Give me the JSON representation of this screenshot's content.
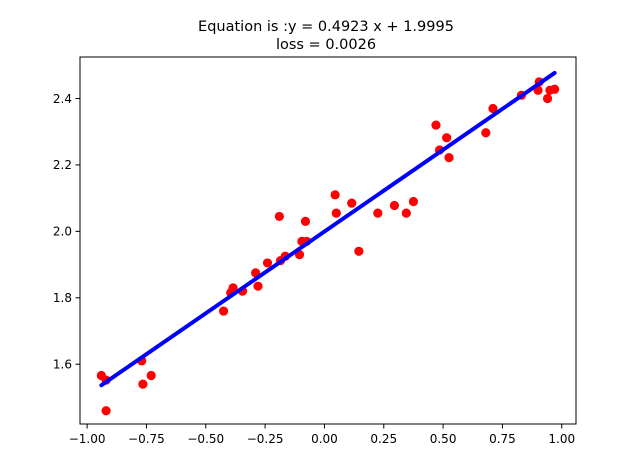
{
  "chart_data": {
    "type": "scatter",
    "title_line1": "Equation is :y = 0.4923 x + 1.9995",
    "title_line2": "loss = 0.0026",
    "xlabel": "",
    "ylabel": "",
    "xlim": [
      -1.03,
      1.06
    ],
    "ylim": [
      1.42,
      2.525
    ],
    "grid": false,
    "x_ticks": [
      {
        "value": -1.0,
        "label": "−1.00"
      },
      {
        "value": -0.75,
        "label": "−0.75"
      },
      {
        "value": -0.5,
        "label": "−0.50"
      },
      {
        "value": -0.25,
        "label": "−0.25"
      },
      {
        "value": 0.0,
        "label": "0.00"
      },
      {
        "value": 0.25,
        "label": "0.25"
      },
      {
        "value": 0.5,
        "label": "0.50"
      },
      {
        "value": 0.75,
        "label": "0.75"
      },
      {
        "value": 1.0,
        "label": "1.00"
      }
    ],
    "y_ticks": [
      {
        "value": 1.6,
        "label": "1.6"
      },
      {
        "value": 1.8,
        "label": "1.8"
      },
      {
        "value": 2.0,
        "label": "2.0"
      },
      {
        "value": 2.2,
        "label": "2.2"
      },
      {
        "value": 2.4,
        "label": "2.4"
      }
    ],
    "scatter": {
      "color": "#ff0000",
      "points": [
        [
          -0.94,
          1.566
        ],
        [
          -0.92,
          1.552
        ],
        [
          -0.92,
          1.46
        ],
        [
          -0.77,
          1.61
        ],
        [
          -0.765,
          1.54
        ],
        [
          -0.73,
          1.566
        ],
        [
          -0.425,
          1.76
        ],
        [
          -0.395,
          1.815
        ],
        [
          -0.385,
          1.83
        ],
        [
          -0.345,
          1.82
        ],
        [
          -0.29,
          1.875
        ],
        [
          -0.28,
          1.835
        ],
        [
          -0.24,
          1.905
        ],
        [
          -0.19,
          2.045
        ],
        [
          -0.185,
          1.912
        ],
        [
          -0.165,
          1.925
        ],
        [
          -0.105,
          1.93
        ],
        [
          -0.095,
          1.97
        ],
        [
          -0.08,
          2.03
        ],
        [
          -0.075,
          1.97
        ],
        [
          0.045,
          2.11
        ],
        [
          0.05,
          2.055
        ],
        [
          0.115,
          2.085
        ],
        [
          0.145,
          1.94
        ],
        [
          0.225,
          2.055
        ],
        [
          0.295,
          2.078
        ],
        [
          0.345,
          2.055
        ],
        [
          0.375,
          2.09
        ],
        [
          0.47,
          2.32
        ],
        [
          0.485,
          2.245
        ],
        [
          0.515,
          2.282
        ],
        [
          0.525,
          2.222
        ],
        [
          0.68,
          2.297
        ],
        [
          0.71,
          2.37
        ],
        [
          0.83,
          2.41
        ],
        [
          0.9,
          2.425
        ],
        [
          0.905,
          2.45
        ],
        [
          0.94,
          2.4
        ],
        [
          0.95,
          2.425
        ],
        [
          0.97,
          2.428
        ]
      ]
    },
    "fit_line": {
      "color": "#0000ff",
      "slope": 0.4923,
      "intercept": 1.9995,
      "x_start": -0.94,
      "x_end": 0.97
    }
  }
}
